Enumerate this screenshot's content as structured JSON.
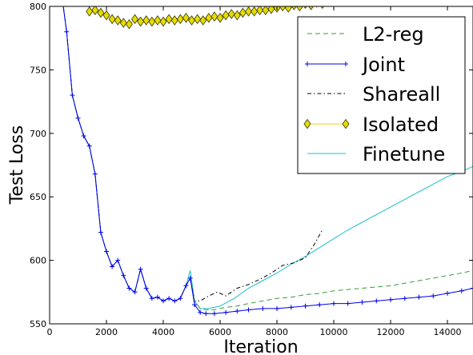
{
  "chart_data": {
    "type": "line",
    "xlabel": "Iteration",
    "ylabel": "Test Loss",
    "xlim": [
      0,
      14900
    ],
    "ylim": [
      550,
      800
    ],
    "xticks": [
      0,
      2000,
      4000,
      6000,
      8000,
      10000,
      12000,
      14000
    ],
    "yticks": [
      550,
      600,
      650,
      700,
      750,
      800
    ],
    "legend_position": "top-right",
    "series": [
      {
        "name": "L2-reg",
        "color": "#3a9a3a",
        "style": "dashed",
        "x": [
          300,
          600,
          800,
          1000,
          1200,
          1400,
          1600,
          1800,
          2000,
          2200,
          2400,
          2600,
          2800,
          3000,
          3200,
          3400,
          3600,
          3800,
          4000,
          4200,
          4400,
          4600,
          4800,
          4950,
          5100,
          5300,
          5500,
          5800,
          6200,
          6600,
          7000,
          7500,
          8000,
          8500,
          9000,
          9500,
          10000,
          10500,
          11000,
          11500,
          12000,
          12500,
          13000,
          13500,
          14000,
          14500,
          14900
        ],
        "y": [
          830,
          780,
          730,
          712,
          698,
          690,
          668,
          622,
          607,
          595,
          600,
          588,
          578,
          575,
          593,
          578,
          570,
          571,
          568,
          570,
          568,
          570,
          580,
          586,
          568,
          562,
          561,
          561,
          563,
          564,
          566,
          568,
          570,
          571,
          573,
          574,
          576,
          577,
          578,
          579,
          580,
          582,
          584,
          586,
          588,
          590,
          592
        ]
      },
      {
        "name": "Joint",
        "color": "#0000ee",
        "style": "solid-plus",
        "x": [
          300,
          600,
          800,
          1000,
          1200,
          1400,
          1600,
          1800,
          2000,
          2200,
          2400,
          2600,
          2800,
          3000,
          3200,
          3400,
          3600,
          3800,
          4000,
          4200,
          4400,
          4600,
          4800,
          4950,
          5100,
          5300,
          5500,
          5800,
          6200,
          6600,
          7000,
          7500,
          8000,
          8500,
          9000,
          9500,
          10000,
          10500,
          11000,
          11500,
          12000,
          12500,
          13000,
          13500,
          14000,
          14500,
          14900
        ],
        "y": [
          830,
          780,
          730,
          712,
          698,
          690,
          668,
          622,
          607,
          595,
          600,
          588,
          578,
          575,
          593,
          578,
          570,
          571,
          568,
          570,
          568,
          570,
          580,
          586,
          565,
          559,
          558,
          558,
          559,
          560,
          561,
          562,
          562,
          563,
          564,
          565,
          566,
          566,
          567,
          568,
          569,
          570,
          571,
          572,
          574,
          576,
          578
        ]
      },
      {
        "name": "Shareall",
        "color": "#000000",
        "style": "dash-dot",
        "x": [
          300,
          600,
          800,
          1000,
          1200,
          1400,
          1600,
          1800,
          2000,
          2200,
          2400,
          2600,
          2800,
          3000,
          3200,
          3400,
          3600,
          3800,
          4000,
          4200,
          4400,
          4600,
          4800,
          4950,
          5100,
          5300,
          5600,
          5900,
          6200,
          6600,
          7000,
          7400,
          7800,
          8200,
          8600,
          9000,
          9300,
          9600
        ],
        "y": [
          830,
          780,
          730,
          712,
          698,
          690,
          668,
          622,
          607,
          595,
          600,
          588,
          578,
          575,
          593,
          578,
          570,
          571,
          568,
          570,
          568,
          570,
          580,
          586,
          568,
          568,
          572,
          575,
          572,
          578,
          581,
          585,
          590,
          596,
          598,
          602,
          612,
          624
        ]
      },
      {
        "name": "Isolated",
        "color": "#e6dc00",
        "style": "solid-diamond",
        "x": [
          1400,
          1600,
          1800,
          2000,
          2200,
          2400,
          2600,
          2800,
          3000,
          3200,
          3400,
          3600,
          3800,
          4000,
          4200,
          4400,
          4600,
          4800,
          5000,
          5200,
          5400,
          5600,
          5800,
          6000,
          6200,
          6400,
          6600,
          6800,
          7000,
          7200,
          7400,
          7600,
          7800,
          8000,
          8200,
          8400,
          8600,
          8800,
          9000,
          9200,
          9400,
          9600
        ],
        "y": [
          796,
          797,
          795,
          793,
          790,
          789,
          787,
          786,
          790,
          788,
          789,
          788,
          789,
          788,
          790,
          789,
          790,
          791,
          789,
          790,
          789,
          791,
          792,
          791,
          793,
          794,
          793,
          795,
          796,
          796,
          797,
          797,
          798,
          799,
          800,
          799,
          801,
          800,
          802,
          801,
          803,
          802
        ]
      },
      {
        "name": "Finetune",
        "color": "#18c0c8",
        "style": "solid",
        "x": [
          300,
          600,
          800,
          1000,
          1200,
          1400,
          1600,
          1800,
          2000,
          2200,
          2400,
          2600,
          2800,
          3000,
          3200,
          3400,
          3600,
          3800,
          4000,
          4200,
          4400,
          4600,
          4800,
          4950,
          5100,
          5300,
          5600,
          6000,
          6500,
          7000,
          7500,
          8000,
          8500,
          9000,
          9500,
          10000,
          10500,
          11000,
          11500,
          12000,
          12500,
          13000,
          13500,
          14000,
          14500,
          14900
        ],
        "y": [
          830,
          780,
          730,
          712,
          698,
          690,
          668,
          622,
          607,
          595,
          600,
          588,
          578,
          575,
          593,
          578,
          570,
          571,
          568,
          570,
          568,
          570,
          580,
          592,
          568,
          562,
          562,
          564,
          570,
          578,
          584,
          590,
          597,
          603,
          610,
          617,
          624,
          630,
          636,
          642,
          648,
          654,
          660,
          666,
          670,
          674
        ]
      }
    ]
  }
}
